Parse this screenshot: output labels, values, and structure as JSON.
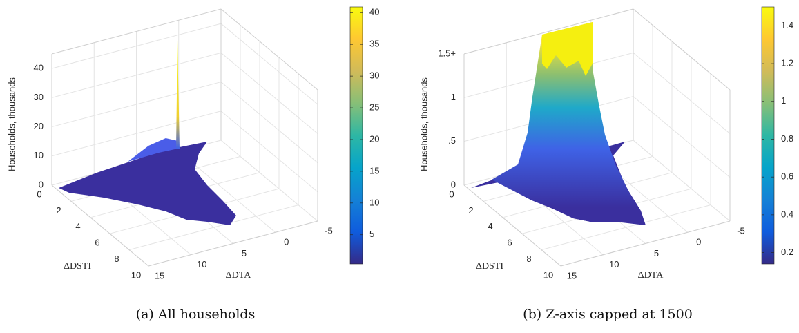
{
  "chart_data": [
    {
      "type": "surface3d",
      "caption": "(a) All households",
      "zlabel": "Households, thousands",
      "xlabel": "ΔDSTI",
      "ylabel": "ΔDTA",
      "xlim": [
        0,
        10
      ],
      "xticks": [
        0,
        2,
        4,
        6,
        8,
        10
      ],
      "ylim": [
        -5,
        15
      ],
      "yticks": [
        15,
        10,
        5,
        0,
        -5
      ],
      "zlim": [
        0,
        45
      ],
      "zticks": [
        0,
        10,
        20,
        30,
        40
      ],
      "grid": true,
      "colorbar": {
        "clim": [
          0.4,
          40.9
        ],
        "ticks": [
          5,
          10,
          15,
          20,
          25,
          30,
          35,
          40
        ],
        "colormap": [
          "#352a87",
          "#0f5cdd",
          "#1481d6",
          "#06a4ca",
          "#2eb7a4",
          "#87bf77",
          "#d1bb59",
          "#fec832",
          "#f9fb0e"
        ]
      }
    },
    {
      "type": "surface3d",
      "caption": "(b) Z-axis capped at 1500",
      "zlabel": "Households, thousands",
      "xlabel": "ΔDSTI",
      "ylabel": "ΔDTA",
      "xlim": [
        0,
        10
      ],
      "xticks": [
        0,
        2,
        4,
        6,
        8,
        10
      ],
      "ylim": [
        -5,
        15
      ],
      "yticks": [
        15,
        10,
        5,
        0,
        -5
      ],
      "zlim": [
        0,
        1.5
      ],
      "zticks": [
        0,
        {
          "value": 0.5,
          "label": ".5"
        },
        1,
        {
          "value": 1.5,
          "label": "1.5+"
        }
      ],
      "grid": true,
      "colorbar": {
        "clim": [
          0.14,
          1.5
        ],
        "ticks": [
          0.2,
          0.4,
          0.6,
          0.8,
          1,
          1.2,
          1.4
        ],
        "colormap": [
          "#352a87",
          "#0f5cdd",
          "#1481d6",
          "#06a4ca",
          "#2eb7a4",
          "#87bf77",
          "#d1bb59",
          "#fec832",
          "#f9fb0e"
        ]
      }
    }
  ]
}
